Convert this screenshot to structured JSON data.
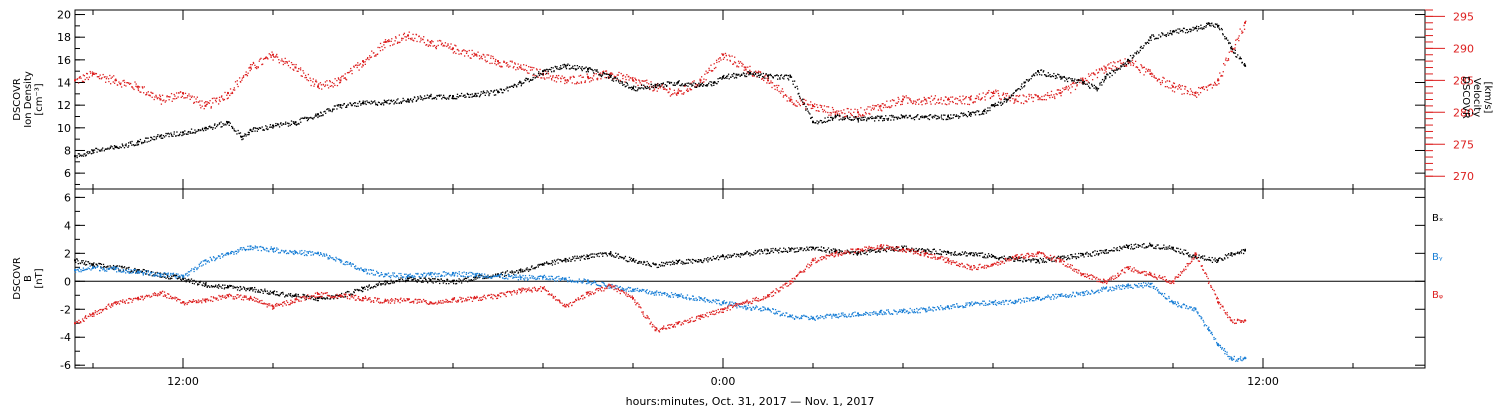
{
  "x_axis": {
    "label": "hours:minutes, Oct. 31, 2017 — Nov.  1, 2017",
    "range_hours": [
      9.6,
      39.6
    ],
    "major_ticks": [
      {
        "h": 12,
        "label": "12:00"
      },
      {
        "h": 24,
        "label": "0:00"
      },
      {
        "h": 36,
        "label": "12:00"
      }
    ],
    "minor_tick_step_hours": 2
  },
  "colors": {
    "black": "#000000",
    "red": "#dd2020",
    "blue": "#1a7fd6"
  },
  "chart_data": [
    {
      "type": "scatter",
      "title": "",
      "left_axis": {
        "label_lines": [
          "DSCOVR",
          "Ion Density",
          "[cm⁻³]"
        ],
        "ylim": [
          4.6,
          20.4
        ],
        "ticks": [
          6,
          8,
          10,
          12,
          14,
          16,
          18,
          20
        ]
      },
      "right_axis": {
        "label_lines": [
          "DSCOVR",
          "Velocity",
          "[km/s]"
        ],
        "ylim": [
          268,
          296
        ],
        "ticks": [
          270,
          275,
          280,
          285,
          290,
          295
        ],
        "color": "#dd2020"
      },
      "series": [
        {
          "color": "#000000",
          "axis": "left",
          "x": [
            9.6,
            10.0,
            10.5,
            11.0,
            11.5,
            12.0,
            12.5,
            13.0,
            13.3,
            13.5,
            14.0,
            14.5,
            15.0,
            15.5,
            16.0,
            16.5,
            17.0,
            17.5,
            18.0,
            18.5,
            19.0,
            19.5,
            20.0,
            20.5,
            21.0,
            21.5,
            22.0,
            22.5,
            23.0,
            23.5,
            23.8,
            24.0,
            24.3,
            24.6,
            25.0,
            25.5,
            26.0,
            26.5,
            27.0,
            27.5,
            28.0,
            28.5,
            29.0,
            29.5,
            29.8,
            30.0,
            30.3,
            30.7,
            31.0,
            31.5,
            32.0,
            32.3,
            32.5,
            33.0,
            33.5,
            34.0,
            34.5,
            34.8,
            35.0,
            35.3,
            35.6
          ],
          "y": [
            7.5,
            8.0,
            8.3,
            8.8,
            9.3,
            9.6,
            10.0,
            10.5,
            9.2,
            9.8,
            10.2,
            10.5,
            11.2,
            12.0,
            12.2,
            12.3,
            12.5,
            12.8,
            12.8,
            13.0,
            13.2,
            14.0,
            15.0,
            15.5,
            15.2,
            14.5,
            13.5,
            13.8,
            14.0,
            13.8,
            14.0,
            14.5,
            14.7,
            14.8,
            14.6,
            14.5,
            10.5,
            11.0,
            10.8,
            10.9,
            11.0,
            11.0,
            11.0,
            11.3,
            11.5,
            12.0,
            12.5,
            14.0,
            15.0,
            14.5,
            14.0,
            13.5,
            14.5,
            16.0,
            18.0,
            18.5,
            18.8,
            19.2,
            19.0,
            17.0,
            15.5
          ]
        },
        {
          "color": "#dd2020",
          "axis": "right",
          "x": [
            9.6,
            10.0,
            10.5,
            11.0,
            11.5,
            12.0,
            12.5,
            13.0,
            13.5,
            14.0,
            14.5,
            15.0,
            15.5,
            16.0,
            16.5,
            17.0,
            17.5,
            18.0,
            18.5,
            19.0,
            19.5,
            20.0,
            20.5,
            21.0,
            21.5,
            22.0,
            22.5,
            23.0,
            23.5,
            24.0,
            24.5,
            25.0,
            25.5,
            26.0,
            26.5,
            27.0,
            27.5,
            28.0,
            28.5,
            29.0,
            29.5,
            30.0,
            30.5,
            31.0,
            31.5,
            32.0,
            32.5,
            33.0,
            33.5,
            34.0,
            34.5,
            35.0,
            35.3,
            35.6
          ],
          "y": [
            285,
            286,
            285,
            284,
            282,
            283,
            281,
            283,
            287,
            289,
            287,
            284,
            285,
            288,
            291,
            292,
            291,
            290,
            289,
            288,
            287,
            286,
            285,
            285.5,
            286,
            285,
            284,
            283,
            285,
            289,
            287,
            285,
            282,
            281,
            280,
            280,
            281,
            282,
            282,
            282,
            282,
            283,
            282,
            282.5,
            283,
            285,
            287,
            288,
            286,
            284,
            283,
            285,
            290,
            294
          ]
        }
      ]
    },
    {
      "type": "scatter",
      "title": "",
      "left_axis": {
        "label_lines": [
          "DSCOVR",
          "B",
          "[nT]"
        ],
        "ylim": [
          -6.2,
          6.6
        ],
        "ticks": [
          -6,
          -4,
          -2,
          0,
          2,
          4,
          6
        ]
      },
      "zero_line": true,
      "legend": [
        "Bₓ",
        "Bᵧ",
        "Bᵩ"
      ],
      "series": [
        {
          "name": "Bₓ",
          "color": "#000000",
          "x": [
            9.6,
            10.0,
            10.5,
            11.0,
            11.5,
            12.0,
            12.5,
            13.0,
            13.5,
            14.0,
            14.5,
            15.0,
            15.5,
            16.0,
            16.5,
            17.0,
            17.5,
            18.0,
            18.5,
            19.0,
            19.5,
            20.0,
            20.5,
            21.0,
            21.5,
            22.0,
            22.5,
            23.0,
            23.5,
            24.0,
            24.5,
            25.0,
            25.5,
            26.0,
            26.5,
            27.0,
            27.5,
            28.0,
            28.5,
            29.0,
            29.5,
            30.0,
            30.5,
            31.0,
            31.5,
            32.0,
            32.5,
            33.0,
            33.5,
            34.0,
            34.5,
            35.0,
            35.3,
            35.6
          ],
          "y": [
            1.5,
            1.2,
            1.0,
            0.8,
            0.5,
            0.2,
            -0.2,
            -0.4,
            -0.5,
            -0.8,
            -1.0,
            -1.2,
            -1.0,
            -0.5,
            0.0,
            0.2,
            0.1,
            0.0,
            0.3,
            0.5,
            0.8,
            1.2,
            1.6,
            1.8,
            2.0,
            1.5,
            1.2,
            1.4,
            1.5,
            1.8,
            2.0,
            2.2,
            2.3,
            2.4,
            2.2,
            2.0,
            2.3,
            2.4,
            2.2,
            2.1,
            2.0,
            1.8,
            1.6,
            1.5,
            1.7,
            1.9,
            2.2,
            2.5,
            2.6,
            2.4,
            1.8,
            1.5,
            2.0,
            2.2
          ]
        },
        {
          "name": "Bᵧ",
          "color": "#1a7fd6",
          "x": [
            9.6,
            10.0,
            10.5,
            11.0,
            11.5,
            12.0,
            12.5,
            13.0,
            13.5,
            14.0,
            14.5,
            15.0,
            15.5,
            16.0,
            16.5,
            17.0,
            17.5,
            18.0,
            18.5,
            19.0,
            19.5,
            20.0,
            20.5,
            21.0,
            21.5,
            22.0,
            22.5,
            23.0,
            23.5,
            24.0,
            24.5,
            25.0,
            25.5,
            26.0,
            26.5,
            27.0,
            27.5,
            28.0,
            28.5,
            29.0,
            29.5,
            30.0,
            30.5,
            31.0,
            31.5,
            32.0,
            32.5,
            33.0,
            33.5,
            34.0,
            34.5,
            34.8,
            35.0,
            35.3,
            35.6
          ],
          "y": [
            0.8,
            1.0,
            0.9,
            0.7,
            0.5,
            0.4,
            1.5,
            2.0,
            2.5,
            2.3,
            2.1,
            2.0,
            1.5,
            0.8,
            0.5,
            0.4,
            0.5,
            0.6,
            0.5,
            0.4,
            0.3,
            0.3,
            0.2,
            0.0,
            -0.3,
            -0.6,
            -0.8,
            -1.0,
            -1.2,
            -1.5,
            -1.8,
            -2.0,
            -2.5,
            -2.6,
            -2.4,
            -2.3,
            -2.2,
            -2.1,
            -2.0,
            -1.8,
            -1.6,
            -1.5,
            -1.4,
            -1.2,
            -1.0,
            -0.8,
            -0.5,
            -0.3,
            -0.2,
            -1.5,
            -2.0,
            -3.5,
            -4.5,
            -5.5,
            -5.5
          ]
        },
        {
          "name": "Bᵩ",
          "color": "#dd2020",
          "x": [
            9.6,
            10.0,
            10.5,
            11.0,
            11.5,
            12.0,
            12.5,
            13.0,
            13.5,
            14.0,
            14.5,
            15.0,
            15.5,
            16.0,
            16.5,
            17.0,
            17.5,
            18.0,
            18.5,
            19.0,
            19.5,
            20.0,
            20.5,
            21.0,
            21.5,
            22.0,
            22.5,
            23.0,
            23.5,
            24.0,
            24.5,
            25.0,
            25.5,
            26.0,
            26.5,
            27.0,
            27.5,
            28.0,
            28.5,
            29.0,
            29.5,
            30.0,
            30.5,
            31.0,
            31.5,
            32.0,
            32.5,
            33.0,
            33.5,
            34.0,
            34.5,
            35.0,
            35.3,
            35.6
          ],
          "y": [
            -3.0,
            -2.3,
            -1.5,
            -1.2,
            -0.8,
            -1.5,
            -1.3,
            -1.0,
            -1.2,
            -1.8,
            -1.3,
            -0.9,
            -1.0,
            -1.2,
            -1.4,
            -1.3,
            -1.5,
            -1.3,
            -1.2,
            -1.0,
            -0.6,
            -0.5,
            -1.8,
            -0.8,
            -0.3,
            -1.2,
            -3.5,
            -3.0,
            -2.5,
            -2.0,
            -1.5,
            -1.0,
            0.0,
            1.5,
            2.0,
            2.3,
            2.5,
            2.3,
            2.0,
            1.5,
            1.0,
            1.2,
            1.8,
            2.0,
            1.5,
            0.5,
            0.0,
            1.0,
            0.5,
            0.0,
            2.0,
            -1.5,
            -2.8,
            -2.8
          ]
        }
      ]
    }
  ]
}
